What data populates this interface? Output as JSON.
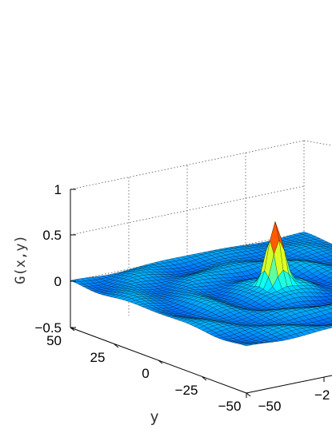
{
  "chart_data": {
    "type": "surface",
    "title": "",
    "xlabel": "",
    "ylabel": "y",
    "zlabel": "G(x,y)",
    "zlim": [
      -0.5,
      1
    ],
    "ylim": [
      -50,
      50
    ],
    "xlim": [
      -50,
      50
    ],
    "z_ticks": [
      "1",
      "0.5",
      "0",
      "−0.5"
    ],
    "y_ticks": [
      "50",
      "25",
      "0",
      "−25",
      "−50"
    ],
    "x_ticks_visible": [
      "−50",
      "−2"
    ],
    "peak": {
      "x": 0,
      "y": 0,
      "z": 0.8
    },
    "colormap": "jet",
    "mesh_color": "#000000",
    "grid": true
  }
}
